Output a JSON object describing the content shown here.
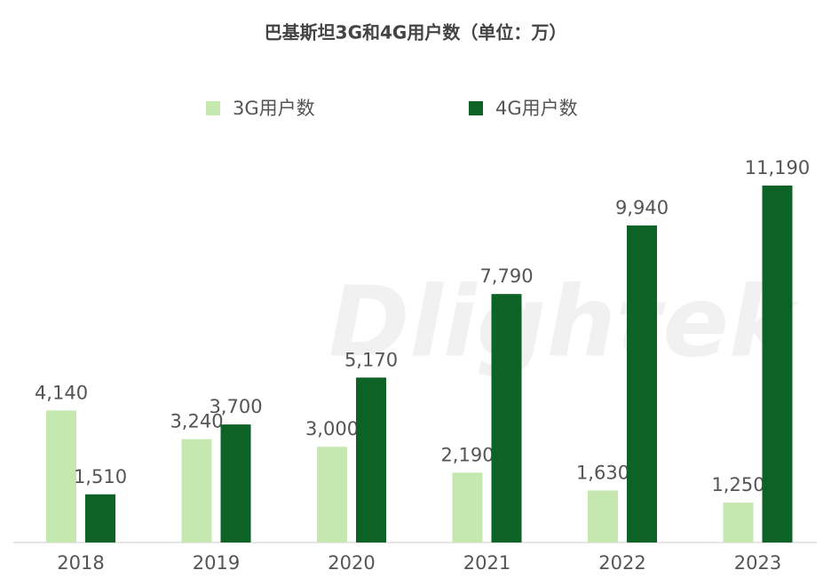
{
  "chart_data": {
    "type": "bar",
    "title": "巴基斯坦3G和4G用户数（单位：万）",
    "watermark": "Dlightek",
    "categories": [
      "2018",
      "2019",
      "2020",
      "2021",
      "2022",
      "2023"
    ],
    "series": [
      {
        "name": "3G用户数",
        "color": "#c5e8b0",
        "values": [
          4140,
          3240,
          3000,
          2190,
          1630,
          1250
        ],
        "value_labels": [
          "4,140",
          "3,240",
          "3,000",
          "2,190",
          "1,630",
          "1,250"
        ]
      },
      {
        "name": "4G用户数",
        "color": "#0d6325",
        "values": [
          1510,
          3700,
          5170,
          7790,
          9940,
          11190
        ],
        "value_labels": [
          "1,510",
          "3,700",
          "5,170",
          "7,790",
          "9,940",
          "11,190"
        ]
      }
    ]
  }
}
